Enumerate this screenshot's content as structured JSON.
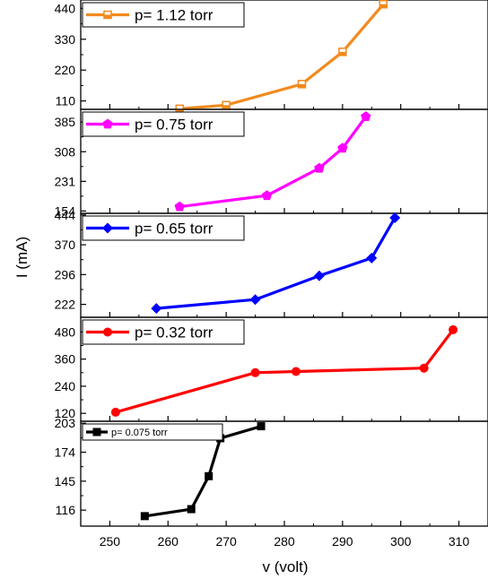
{
  "chart_data": {
    "type": "line",
    "layout": "stacked-panels",
    "xlabel": "v (volt)",
    "ylabel": "I (mA)",
    "xlim": [
      245,
      315
    ],
    "xticks": [
      250,
      260,
      270,
      280,
      290,
      300,
      310
    ],
    "xtick_labels": [
      "250",
      "260",
      "270",
      "280",
      "290",
      "300",
      "310"
    ],
    "legend_position": "top-left",
    "grid": false,
    "panels": [
      {
        "series_name": "p= 1.12 torr",
        "color": "#f28a1e",
        "marker": "half-filled-square",
        "ylim": [
          80,
          470
        ],
        "yticks": [
          110,
          220,
          330,
          440
        ],
        "ytick_labels": [
          "110",
          "220",
          "330",
          "440"
        ],
        "x": [
          262,
          270,
          283,
          290,
          297
        ],
        "y": [
          82,
          95,
          170,
          285,
          455
        ]
      },
      {
        "series_name": "p= 0.75 torr",
        "color": "#ff00ff",
        "marker": "pentagon",
        "ylim": [
          148,
          418
        ],
        "yticks": [
          154,
          231,
          308,
          385
        ],
        "ytick_labels": [
          "154",
          "231",
          "308",
          "385"
        ],
        "x": [
          262,
          277,
          286,
          290,
          294
        ],
        "y": [
          165,
          194,
          265,
          317,
          399
        ]
      },
      {
        "series_name": "p= 0.65 torr",
        "color": "#0000ff",
        "marker": "diamond",
        "ylim": [
          190,
          448
        ],
        "yticks": [
          222,
          296,
          370,
          444
        ],
        "ytick_labels": [
          "222",
          "296",
          "370",
          "444"
        ],
        "x": [
          258,
          275,
          286,
          295,
          299
        ],
        "y": [
          212,
          234,
          293,
          337,
          437
        ]
      },
      {
        "series_name": "p= 0.32 torr",
        "color": "#ff0000",
        "marker": "circle",
        "ylim": [
          85,
          545
        ],
        "yticks": [
          120,
          240,
          360,
          480
        ],
        "ytick_labels": [
          "120",
          "240",
          "360",
          "480"
        ],
        "x": [
          251,
          275,
          282,
          304,
          309
        ],
        "y": [
          125,
          300,
          305,
          320,
          490
        ]
      },
      {
        "series_name": "p= 0.075 torr",
        "color": "#000000",
        "marker": "square",
        "ylim": [
          100,
          205
        ],
        "yticks": [
          116,
          145,
          174,
          203
        ],
        "ytick_labels": [
          "116",
          "145",
          "174",
          "203"
        ],
        "x": [
          256,
          264,
          267,
          269,
          276
        ],
        "y": [
          110,
          117,
          150,
          188,
          200
        ]
      }
    ]
  }
}
